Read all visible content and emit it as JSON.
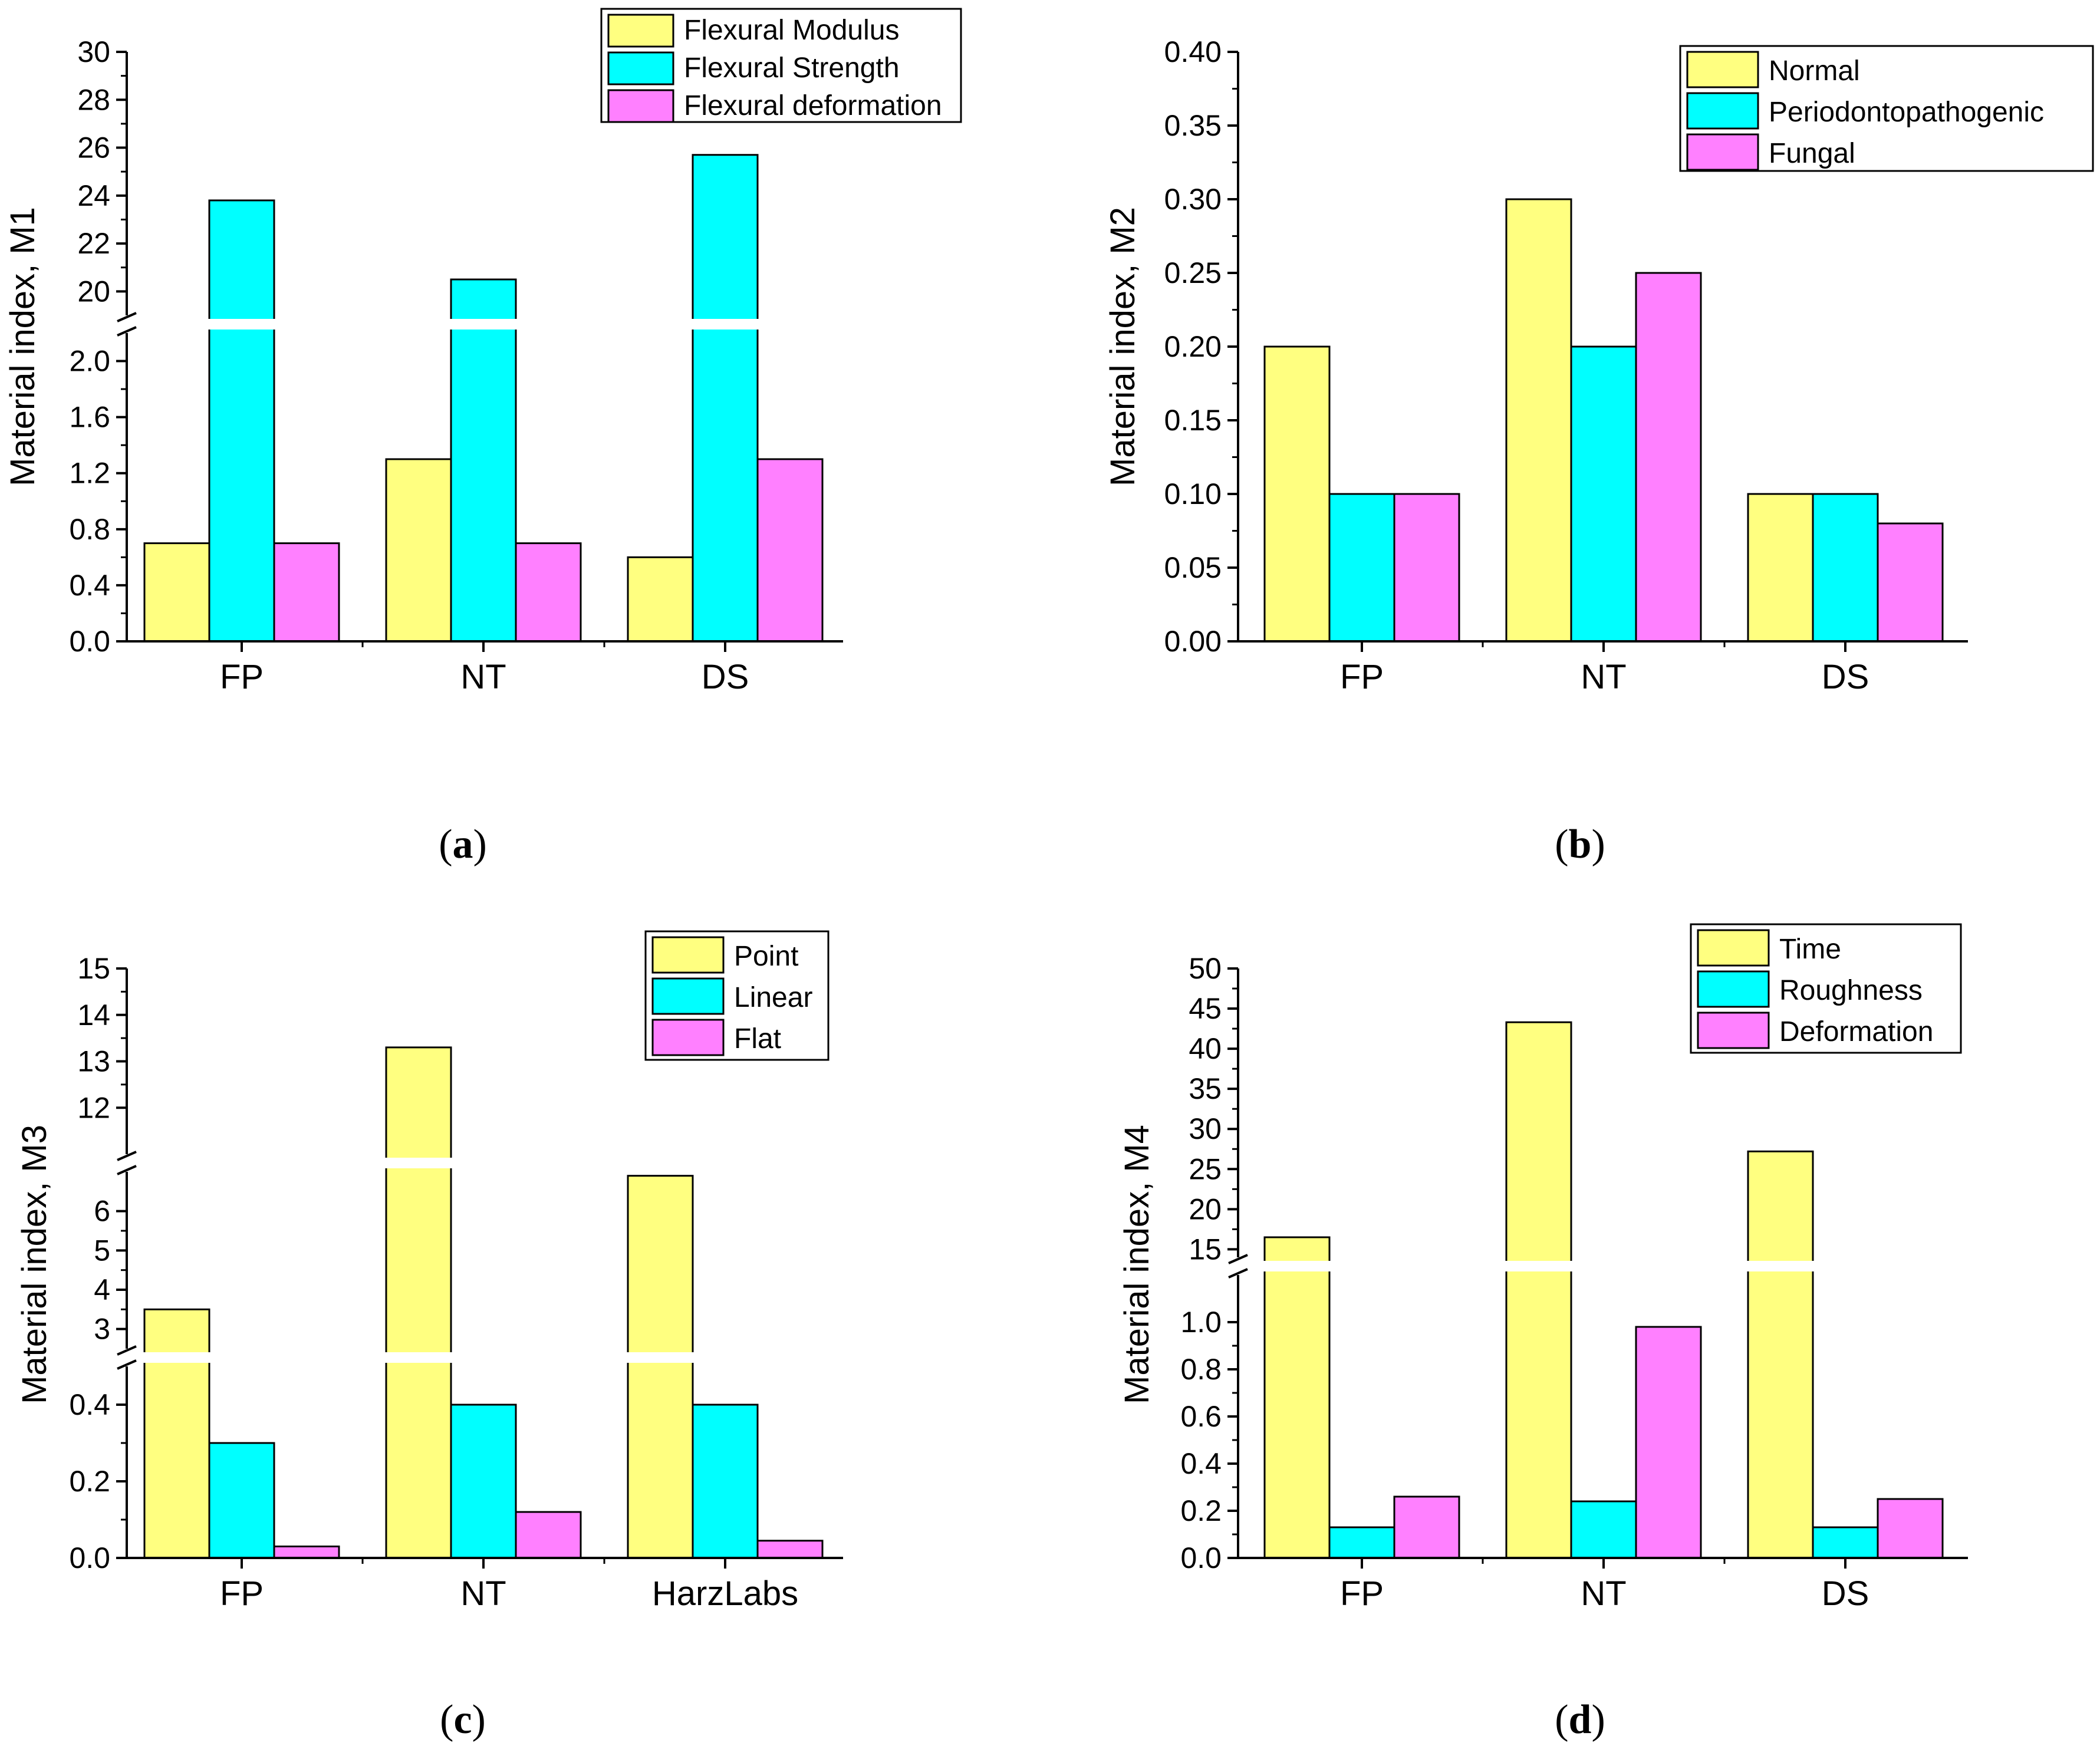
{
  "colors": {
    "yellow": "#FFFF80",
    "cyan": "#00FFFF",
    "magenta": "#FF80FF",
    "axis": "#000000"
  },
  "chart_data": [
    {
      "id": "a",
      "type": "bar",
      "panel_label": "a",
      "categories": [
        "FP",
        "NT",
        "DS"
      ],
      "ylabel": "Material index, M1",
      "series": [
        {
          "name": "Flexural Modulus",
          "color": "yellow",
          "values": [
            0.7,
            1.3,
            0.6
          ]
        },
        {
          "name": "Flexural Strength",
          "color": "cyan",
          "values": [
            23.8,
            20.5,
            25.7
          ]
        },
        {
          "name": "Flexural deformation",
          "color": "magenta",
          "values": [
            0.7,
            0.7,
            1.3
          ]
        }
      ],
      "y_segments": [
        {
          "range": [
            0,
            2.2
          ],
          "ticks": [
            "0.0",
            "0.4",
            "0.8",
            "1.2",
            "1.6",
            "2.0"
          ]
        },
        {
          "range": [
            19,
            30
          ],
          "ticks": [
            "20",
            "22",
            "24",
            "26",
            "28",
            "30"
          ]
        }
      ],
      "legend_position": "top-right"
    },
    {
      "id": "b",
      "type": "bar",
      "panel_label": "b",
      "categories": [
        "FP",
        "NT",
        "DS"
      ],
      "ylabel": "Material index, M2",
      "series": [
        {
          "name": "Normal",
          "color": "yellow",
          "values": [
            0.2,
            0.3,
            0.1
          ]
        },
        {
          "name": "Periodontopathogenic",
          "color": "cyan",
          "values": [
            0.1,
            0.2,
            0.1
          ]
        },
        {
          "name": "Fungal",
          "color": "magenta",
          "values": [
            0.1,
            0.25,
            0.08
          ]
        }
      ],
      "y_segments": [
        {
          "range": [
            0,
            0.4
          ],
          "ticks": [
            "0.00",
            "0.05",
            "0.10",
            "0.15",
            "0.20",
            "0.25",
            "0.30",
            "0.35",
            "0.40"
          ]
        }
      ],
      "legend_position": "top-right"
    },
    {
      "id": "c",
      "type": "bar",
      "panel_label": "c",
      "categories": [
        "FP",
        "NT",
        "HarzLabs"
      ],
      "ylabel": "Material index, M3",
      "series": [
        {
          "name": "Point",
          "color": "yellow",
          "values": [
            3.5,
            13.3,
            6.9
          ]
        },
        {
          "name": "Linear",
          "color": "cyan",
          "values": [
            0.3,
            0.4,
            0.4
          ]
        },
        {
          "name": "Flat",
          "color": "magenta",
          "values": [
            0.03,
            0.12,
            0.045
          ]
        }
      ],
      "y_segments": [
        {
          "range": [
            0,
            0.5
          ],
          "ticks": [
            "0.0",
            "0.2",
            "0.4"
          ]
        },
        {
          "range": [
            2.5,
            7
          ],
          "ticks": [
            "3",
            "4",
            "5",
            "6"
          ]
        },
        {
          "range": [
            11,
            15
          ],
          "ticks": [
            "12",
            "13",
            "14",
            "15"
          ]
        }
      ],
      "legend_position": "top-right"
    },
    {
      "id": "d",
      "type": "bar",
      "panel_label": "d",
      "categories": [
        "FP",
        "NT",
        "DS"
      ],
      "ylabel": "Material index, M4",
      "series": [
        {
          "name": "Time",
          "color": "yellow",
          "values": [
            16.5,
            43.3,
            27.2
          ]
        },
        {
          "name": "Roughness",
          "color": "cyan",
          "values": [
            0.13,
            0.24,
            0.13
          ]
        },
        {
          "name": "Deformation",
          "color": "magenta",
          "values": [
            0.26,
            0.98,
            0.25
          ]
        }
      ],
      "y_segments": [
        {
          "range": [
            0,
            1.2
          ],
          "ticks": [
            "0.0",
            "0.2",
            "0.4",
            "0.6",
            "0.8",
            "1.0"
          ]
        },
        {
          "range": [
            14,
            50
          ],
          "ticks": [
            "15",
            "20",
            "25",
            "30",
            "35",
            "40",
            "45",
            "50"
          ]
        }
      ],
      "legend_position": "top-right"
    }
  ]
}
